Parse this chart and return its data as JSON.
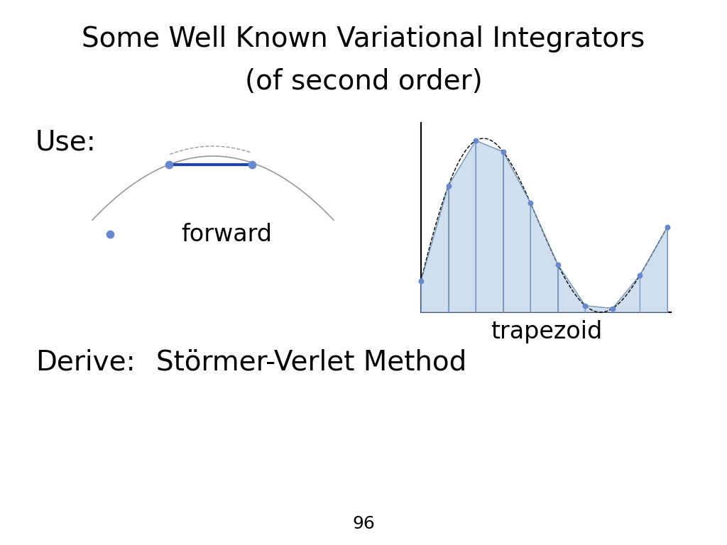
{
  "title_line1": "Some Well Known Variational Integrators",
  "title_line2": "(of second order)",
  "use_label": "Use:",
  "derive_label": "Derive:",
  "forward_label": "forward",
  "trapezoid_label": "trapezoid",
  "stormer_verlet_label": "Störmer-Verlet Method",
  "page_number": "96",
  "bg_color": "#ffffff",
  "text_color": "#000000",
  "curve_color": "#999999",
  "blue_color": "#2244aa",
  "dot_color": "#6688cc",
  "fill_color": "#d0dff0",
  "fill_edge_color": "#7799bb",
  "title_fontsize": 28,
  "label_fontsize": 28,
  "sub_fontsize": 24,
  "page_fontsize": 18
}
